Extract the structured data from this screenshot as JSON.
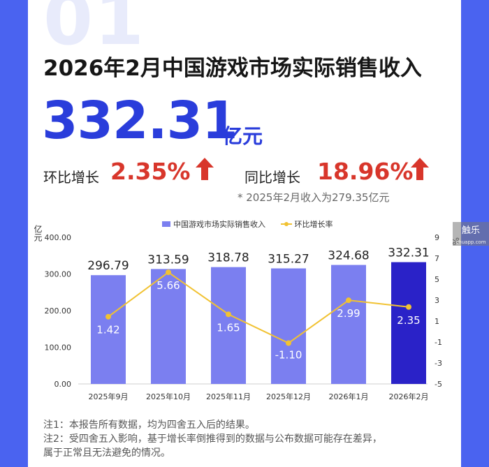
{
  "header": {
    "section_number": "01",
    "title": "2026年2月中国游戏市场实际销售收入",
    "value": "332.31",
    "unit": "亿元",
    "mom_label": "环比增长",
    "mom_value": "2.35%",
    "yoy_label": "同比增长",
    "yoy_value": "18.96%",
    "footnote": "* 2025年2月收入为279.35亿元"
  },
  "side_badge": {
    "text": "触乐",
    "sub": "chuapp.com"
  },
  "colors": {
    "frame": "#4a63f0",
    "bar": "#7b7ff0",
    "bar_highlight": "#2a22c8",
    "line": "#f1c232",
    "accent_up": "#d8362b",
    "big_value": "#2a3ddb"
  },
  "chart_data": {
    "type": "bar",
    "categories": [
      "2025年9月",
      "2025年10月",
      "2025年11月",
      "2025年12月",
      "2026年1月",
      "2026年2月"
    ],
    "series": [
      {
        "name": "中国游戏市场实际销售收入",
        "type": "bar",
        "axis": "left",
        "values": [
          296.79,
          313.59,
          318.78,
          315.27,
          324.68,
          332.31
        ],
        "labels": [
          "296.79",
          "313.59",
          "318.78",
          "315.27",
          "324.68",
          "332.31"
        ]
      },
      {
        "name": "环比增长率",
        "type": "line",
        "axis": "right",
        "values": [
          1.42,
          5.66,
          1.65,
          -1.1,
          2.99,
          2.35
        ],
        "labels": [
          "1.42",
          "5.66",
          "1.65",
          "-1.10",
          "2.99",
          "2.35"
        ]
      }
    ],
    "y_left": {
      "label": "亿元",
      "range": [
        0,
        400
      ],
      "ticks": [
        "0.00",
        "100.00",
        "200.00",
        "300.00",
        "400.00"
      ],
      "tick_values": [
        0,
        100,
        200,
        300,
        400
      ]
    },
    "y_right": {
      "label": "%",
      "range": [
        -5,
        9
      ],
      "ticks": [
        "-5",
        "-3",
        "-1",
        "1",
        "3",
        "5",
        "7",
        "9"
      ],
      "tick_values": [
        -5,
        -3,
        -1,
        1,
        3,
        5,
        7,
        9
      ]
    },
    "highlight_index": 5,
    "legend_position": "top",
    "grid": false
  },
  "notes": [
    "注1：本报告所有数据，均为四舍五入后的结果。",
    "注2：受四舍五入影响，基于增长率倒推得到的数据与公布数据可能存在差异，",
    "属于正常且无法避免的情况。"
  ]
}
